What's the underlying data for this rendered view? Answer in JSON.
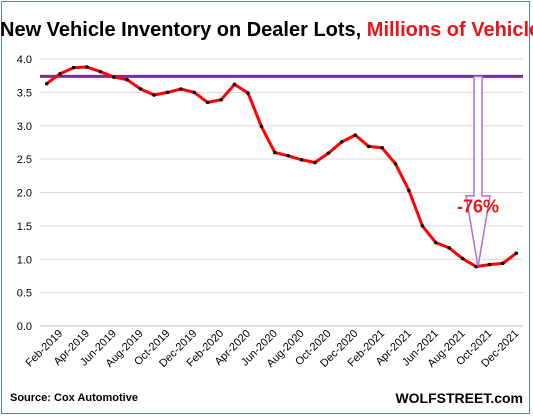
{
  "title": {
    "main": "New Vehicle Inventory on Dealer Lots, ",
    "accent": "Millions of Vehicles"
  },
  "source": "Source: Cox Automotive",
  "brand": "WOLFSTREET.com",
  "colors": {
    "line": "#ff0000",
    "marker": "#000000",
    "reference_line": "#7b2c9c",
    "arrow": "#b06ed0",
    "annotation": "#e8141b",
    "grid": "#d9d9d9",
    "title_accent": "#e8141b"
  },
  "chart_data": {
    "type": "line",
    "title": "New Vehicle Inventory on Dealer Lots, Millions of Vehicles",
    "xlabel": "",
    "ylabel": "",
    "ylim": [
      0,
      4
    ],
    "yticks": [
      "0.0",
      "0.5",
      "1.0",
      "1.5",
      "2.0",
      "2.5",
      "3.0",
      "3.5",
      "4.0"
    ],
    "x": [
      "Jan-2019",
      "Feb-2019",
      "Mar-2019",
      "Apr-2019",
      "May-2019",
      "Jun-2019",
      "Jul-2019",
      "Aug-2019",
      "Sep-2019",
      "Oct-2019",
      "Nov-2019",
      "Dec-2019",
      "Jan-2020",
      "Feb-2020",
      "Mar-2020",
      "Apr-2020",
      "May-2020",
      "Jun-2020",
      "Jul-2020",
      "Aug-2020",
      "Sep-2020",
      "Oct-2020",
      "Nov-2020",
      "Dec-2020",
      "Jan-2021",
      "Feb-2021",
      "Mar-2021",
      "Apr-2021",
      "May-2021",
      "Jun-2021",
      "Jul-2021",
      "Aug-2021",
      "Sep-2021",
      "Oct-2021",
      "Nov-2021",
      "Dec-2021"
    ],
    "xtick_labels": [
      "Feb-2019",
      "Apr-2019",
      "Jun-2019",
      "Aug-2019",
      "Oct-2019",
      "Dec-2019",
      "Feb-2020",
      "Apr-2020",
      "Jun-2020",
      "Aug-2020",
      "Oct-2020",
      "Dec-2020",
      "Feb-2021",
      "Apr-2021",
      "Jun-2021",
      "Aug-2021",
      "Oct-2021",
      "Dec-2021"
    ],
    "series": [
      {
        "values": [
          3.63,
          3.78,
          3.87,
          3.88,
          3.81,
          3.73,
          3.69,
          3.55,
          3.46,
          3.5,
          3.55,
          3.5,
          3.35,
          3.39,
          3.62,
          3.49,
          2.99,
          2.6,
          2.55,
          2.49,
          2.45,
          2.59,
          2.76,
          2.86,
          2.69,
          2.67,
          2.43,
          2.03,
          1.5,
          1.25,
          1.17,
          1.01,
          0.89,
          0.92,
          0.94,
          1.09
        ]
      }
    ],
    "reference_line": {
      "value": 3.74
    },
    "annotation": {
      "text": "-76%",
      "arrow_from": 3.74,
      "arrow_to": 0.89
    },
    "grid": true,
    "legend": "none"
  }
}
